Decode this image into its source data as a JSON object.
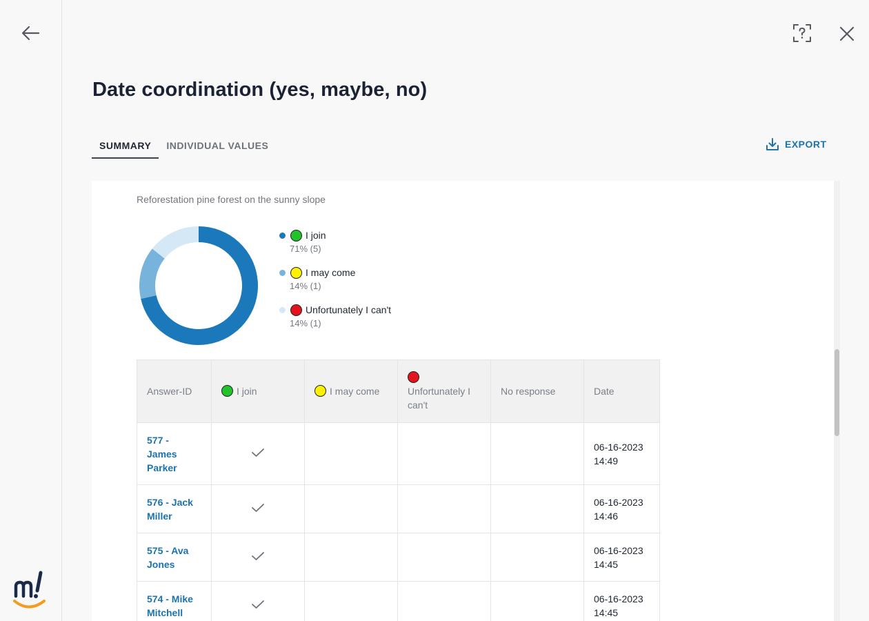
{
  "page": {
    "title": "Date coordination (yes, maybe, no)"
  },
  "tabs": [
    {
      "label": "SUMMARY",
      "active": true
    },
    {
      "label": "INDIVIDUAL VALUES",
      "active": false
    }
  ],
  "export": {
    "label": "EXPORT",
    "icon": "download-icon"
  },
  "icons": {
    "back": "arrow-left-icon",
    "help": "help-question-icon",
    "close": "close-icon",
    "logo": "m-exclamation-logo"
  },
  "colors": {
    "accent": "#1a73b0",
    "join_slice": "#1a78bb",
    "maybe_slice": "#78b3dc",
    "cant_slice": "#d4e8f6",
    "emoji_green": "#22c22a",
    "emoji_yellow": "#fff200",
    "emoji_red": "#e3141f",
    "logo_dark": "#1c2a4a",
    "logo_orange": "#f39c1f"
  },
  "question": "Reforestation pine forest on the sunny slope",
  "chart_data": {
    "type": "pie",
    "donut": true,
    "categories": [
      "I join",
      "I may come",
      "Unfortunately I can't"
    ],
    "values": [
      5,
      1,
      1
    ],
    "percents": [
      "71%",
      "14%",
      "14%"
    ],
    "legend_placement": "right"
  },
  "legend": [
    {
      "label": "I join",
      "stat": "71% (5)",
      "dot_color": "#1a78bb",
      "emoji_color": "#22c22a"
    },
    {
      "label": "I may come",
      "stat": "14% (1)",
      "dot_color": "#78b3dc",
      "emoji_color": "#fff200"
    },
    {
      "label": "Unfortunately I can't",
      "stat": "14% (1)",
      "dot_color": "#d4e8f6",
      "emoji_color": "#e3141f"
    }
  ],
  "table": {
    "headers": {
      "answer_id": "Answer-ID",
      "join": "I join",
      "maybe": "I may come",
      "cant": "Unfortunately I can't",
      "no_response": "No response",
      "date": "Date"
    },
    "rows": [
      {
        "answer": "577 - James Parker",
        "join": true,
        "maybe": false,
        "cant": false,
        "no_response": false,
        "date": "06-16-2023",
        "time": "14:49"
      },
      {
        "answer": "576 - Jack Miller",
        "join": true,
        "maybe": false,
        "cant": false,
        "no_response": false,
        "date": "06-16-2023",
        "time": "14:46"
      },
      {
        "answer": "575 - Ava Jones",
        "join": true,
        "maybe": false,
        "cant": false,
        "no_response": false,
        "date": "06-16-2023",
        "time": "14:45"
      },
      {
        "answer": "574 - Mike Mitchell",
        "join": true,
        "maybe": false,
        "cant": false,
        "no_response": false,
        "date": "06-16-2023",
        "time": "14:45"
      }
    ]
  }
}
